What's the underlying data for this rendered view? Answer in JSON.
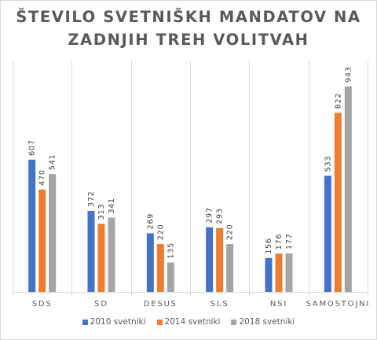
{
  "title_lines": [
    "ŠTEVILO SVETNIŠKH MANDATOV NA",
    "ZADNJIH TREH VOLITVAH"
  ],
  "chart_data": {
    "type": "bar",
    "title": "ŠTEVILO SVETNIŠKH MANDATOV NA ZADNJIH TREH VOLITVAH",
    "categories": [
      "SDS",
      "SD",
      "DESUS",
      "SLS",
      "NSI",
      "SAMOSTOJNI"
    ],
    "series": [
      {
        "name": "2010 svetniki",
        "color": "#4472C4",
        "values": [
          607,
          372,
          269,
          297,
          156,
          533
        ]
      },
      {
        "name": "2014 svetniki",
        "color": "#ED7D31",
        "values": [
          470,
          313,
          220,
          293,
          176,
          822
        ]
      },
      {
        "name": "2018 svetniki",
        "color": "#A5A5A5",
        "values": [
          541,
          341,
          135,
          220,
          177,
          943
        ]
      }
    ],
    "ylim": [
      0,
      1000
    ],
    "grid": false,
    "legend": "bottom",
    "data_labels": true
  }
}
